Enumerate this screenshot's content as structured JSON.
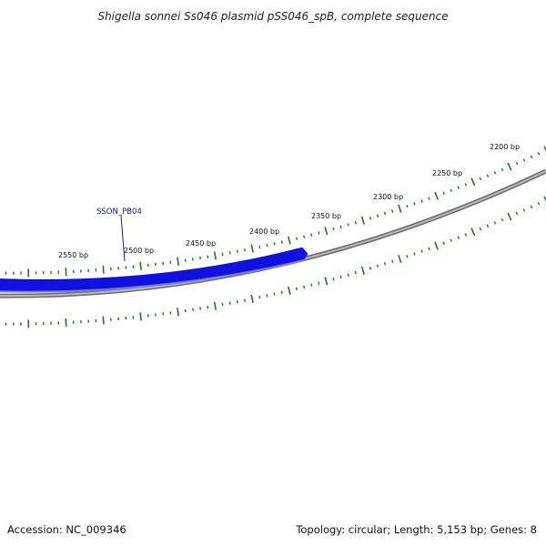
{
  "title": "Shigella sonnei Ss046 plasmid pSS046_spB, complete sequence",
  "footer": {
    "accession": "Accession: NC_009346",
    "summary": "Topology: circular; Length: 5,153 bp; Genes: 8"
  },
  "map": {
    "topology": "circular",
    "length_bp": 5153,
    "gene_count": 8,
    "visible_range_bp": [
      2200,
      2600
    ],
    "backbone_color": "#808080",
    "tick_color": "#1f7a1f",
    "tick_labels": [
      "2200 bp",
      "2250 bp",
      "2300 bp",
      "2350 bp",
      "2400 bp",
      "2450 bp",
      "2500 bp",
      "2550 bp"
    ]
  },
  "genes": [
    {
      "name": "SSON_PB04",
      "strand": "reverse",
      "color": "#1010e0"
    }
  ]
}
